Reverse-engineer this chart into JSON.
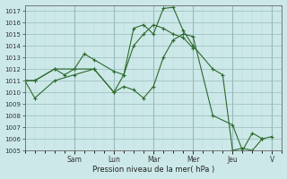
{
  "background_color": "#cce8e8",
  "grid_color_major": "#99bbbb",
  "grid_color_minor": "#bbdddd",
  "line_color": "#2d6a2d",
  "marker_color": "#2d6a2d",
  "xlabel": "Pression niveau de la mer( hPa )",
  "ylim": [
    1005,
    1017.5
  ],
  "yticks": [
    1005,
    1006,
    1007,
    1008,
    1009,
    1010,
    1011,
    1012,
    1013,
    1014,
    1015,
    1016,
    1017
  ],
  "xlim": [
    0,
    13
  ],
  "day_labels": [
    "Sam",
    "Lun",
    "Mar",
    "Mer",
    "Jeu",
    "V"
  ],
  "day_positions": [
    2.5,
    4.5,
    6.5,
    8.5,
    10.5,
    12.5
  ],
  "series": [
    {
      "x": [
        0,
        0.5,
        1.5,
        2.5,
        3.5,
        4.5,
        5.0,
        5.5,
        6.0,
        6.5,
        7.0,
        7.5,
        8.0,
        8.5,
        9.5,
        10.5,
        11.0,
        11.5,
        12.0,
        12.5
      ],
      "y": [
        1011,
        1009.5,
        1011,
        1011.5,
        1012,
        1010,
        1010.5,
        1010.2,
        1009.5,
        1010.5,
        1013,
        1014.5,
        1015,
        1014.8,
        1008,
        1007.2,
        1005,
        1006.5,
        1006,
        1006.2
      ]
    },
    {
      "x": [
        0,
        0.5,
        1.5,
        2.5,
        3.0,
        3.5,
        4.5,
        5.0,
        5.5,
        6.0,
        6.5,
        7.0,
        7.5,
        8.0,
        8.5,
        9.5,
        10.0,
        10.5,
        11.0,
        11.5,
        12.0
      ],
      "y": [
        1011,
        1011,
        1012,
        1012,
        1013.3,
        1012.8,
        1011.8,
        1011.5,
        1015.5,
        1015.8,
        1015,
        1017.2,
        1017.3,
        1015.3,
        1014,
        1012,
        1011.5,
        1005,
        1005.2,
        1005,
        1006
      ]
    },
    {
      "x": [
        0,
        0.5,
        1.5,
        2.0,
        2.5,
        3.5,
        4.5,
        5.0,
        5.5,
        6.0,
        6.5,
        7.0,
        7.5,
        8.0,
        8.5
      ],
      "y": [
        1011,
        1011,
        1012,
        1011.5,
        1012,
        1012,
        1010,
        1011.5,
        1014,
        1015,
        1015.8,
        1015.5,
        1015,
        1014.7,
        1013.8
      ]
    }
  ]
}
